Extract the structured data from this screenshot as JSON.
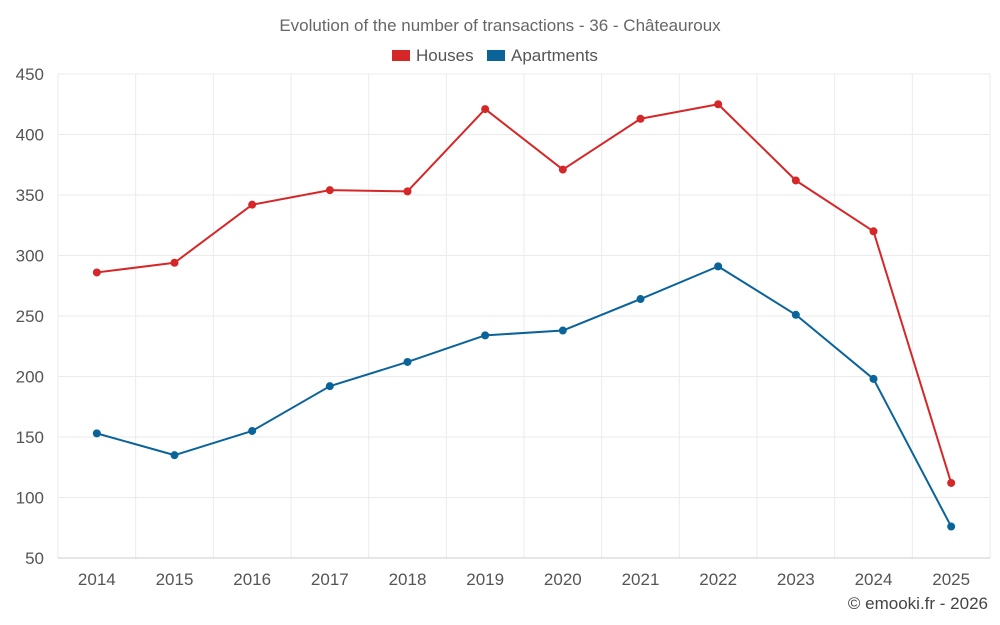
{
  "chart_data": {
    "type": "line",
    "title": "Evolution of the number of transactions - 36 - Châteauroux",
    "categories": [
      "2014",
      "2015",
      "2016",
      "2017",
      "2018",
      "2019",
      "2020",
      "2021",
      "2022",
      "2023",
      "2024",
      "2025"
    ],
    "series": [
      {
        "name": "Houses",
        "color": "#d62728",
        "values": [
          286,
          294,
          342,
          354,
          353,
          421,
          371,
          413,
          425,
          362,
          320,
          112
        ]
      },
      {
        "name": "Apartments",
        "color": "#0a6399",
        "values": [
          153,
          135,
          155,
          192,
          212,
          234,
          238,
          264,
          291,
          251,
          198,
          76
        ]
      }
    ],
    "y_ticks": [
      50,
      100,
      150,
      200,
      250,
      300,
      350,
      400,
      450
    ],
    "ylim": [
      50,
      450
    ],
    "xlabel": "",
    "ylabel": "",
    "grid": true,
    "legend_position": "top-center"
  },
  "credit": "© emooki.fr - 2026"
}
